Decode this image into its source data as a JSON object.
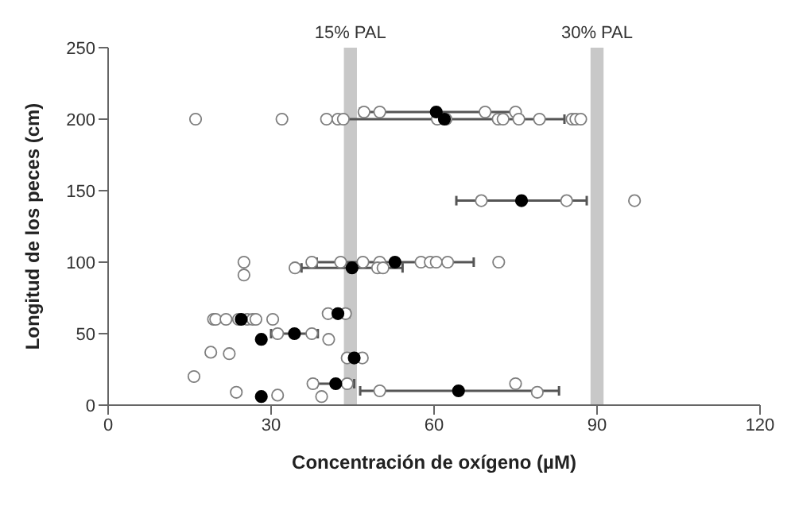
{
  "chart_data": {
    "type": "scatter",
    "xlabel": "Concentración de oxígeno (µM)",
    "ylabel": "Longitud de los peces (cm)",
    "xlim": [
      0,
      120
    ],
    "xticks": [
      0,
      30,
      60,
      90,
      120
    ],
    "ylim": [
      0,
      250
    ],
    "yticks": [
      0,
      50,
      100,
      150,
      200,
      250
    ],
    "grid": false,
    "legend": false,
    "marker": "circle",
    "bands": [
      {
        "axis": "x",
        "from": 43.4,
        "to": 45.8,
        "label": "15% PAL",
        "color": "#c8c8c8"
      },
      {
        "axis": "x",
        "from": 88.8,
        "to": 91.2,
        "label": "30% PAL",
        "color": "#c8c8c8"
      }
    ],
    "series": [
      {
        "color": "#7f7f7f",
        "x": [
          47.1,
          50.0,
          69.4,
          75.0,
          16.1,
          32.0,
          40.2,
          42.3,
          43.3,
          60.6,
          62.2,
          71.8,
          72.7,
          75.6,
          79.4,
          85.4,
          86.1,
          87.0,
          68.7,
          84.4,
          96.9,
          25.0,
          37.5,
          42.8,
          46.9,
          50.0,
          57.6,
          59.3,
          60.4,
          62.5,
          71.9,
          25.0,
          34.4,
          49.6,
          50.6,
          40.5,
          43.7,
          19.4,
          19.8,
          21.7,
          24.0,
          25.6,
          26.6,
          27.2,
          30.3,
          31.2,
          37.5,
          40.6,
          18.9,
          22.3,
          44.0,
          46.8,
          15.8,
          37.7,
          44.0,
          75.0,
          50.0,
          79.0,
          23.6,
          31.2,
          39.3
        ],
        "values": [
          205,
          205,
          205,
          205,
          200,
          200,
          200,
          200,
          200,
          200,
          200,
          200,
          200,
          200,
          200,
          200,
          200,
          200,
          143,
          143,
          143,
          100,
          100,
          100,
          100,
          100,
          100,
          100,
          100,
          100,
          100,
          91,
          96,
          96,
          96,
          64,
          64,
          60,
          60,
          60,
          60,
          60,
          60,
          60,
          60,
          50,
          50,
          46,
          37,
          36,
          33,
          33,
          20,
          15,
          15,
          15,
          10,
          9,
          9,
          7,
          6
        ]
      },
      {
        "color": "#000000",
        "x": [
          60.4,
          61.9,
          76.1,
          52.8,
          44.9,
          42.3,
          24.5,
          34.3,
          28.2,
          45.3,
          41.9,
          64.5,
          28.2
        ],
        "values": [
          205,
          200,
          143,
          100,
          96,
          64,
          60,
          50,
          46,
          33,
          15,
          10,
          6
        ],
        "xerrors": [
          [
            46.4,
            75.0
          ],
          [
            39.7,
            84.0
          ],
          [
            64.1,
            88.1
          ],
          [
            38.4,
            67.3
          ],
          [
            35.6,
            54.2
          ],
          [
            40.2,
            44.4
          ],
          [
            21.5,
            27.5
          ],
          [
            30.0,
            38.6
          ],
          null,
          [
            43.7,
            47.2
          ],
          [
            38.4,
            45.3
          ],
          [
            46.4,
            83.0
          ],
          null
        ]
      }
    ]
  }
}
